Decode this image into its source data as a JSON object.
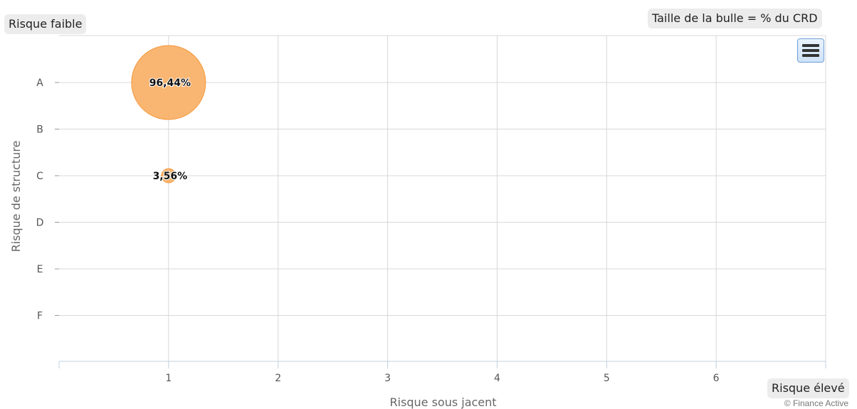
{
  "labels": {
    "top_left": "Risque faible",
    "top_right": "Taille de la bulle = % du CRD",
    "bottom_right": "Risque élevé",
    "credit": "© Finance Active"
  },
  "colors": {
    "bubble_fill": "#f9b26a",
    "bubble_stroke": "#f5973a",
    "grid": "#d8d8d8",
    "axis": "#c0d0e0"
  },
  "menu_icon": "hamburger-menu-icon",
  "chart_data": {
    "type": "scatter",
    "subtype": "bubble",
    "xlabel": "Risque sous jacent",
    "ylabel": "Risque de structure",
    "x_ticks": [
      1,
      2,
      3,
      4,
      5,
      6
    ],
    "x_range": [
      0,
      7
    ],
    "y_categories": [
      "A",
      "B",
      "C",
      "D",
      "E",
      "F"
    ],
    "grid": true,
    "legend": "none",
    "points": [
      {
        "x": 1,
        "y": "A",
        "value": 96.44,
        "label": "96,44%"
      },
      {
        "x": 1,
        "y": "C",
        "value": 3.56,
        "label": "3,56%"
      }
    ]
  }
}
